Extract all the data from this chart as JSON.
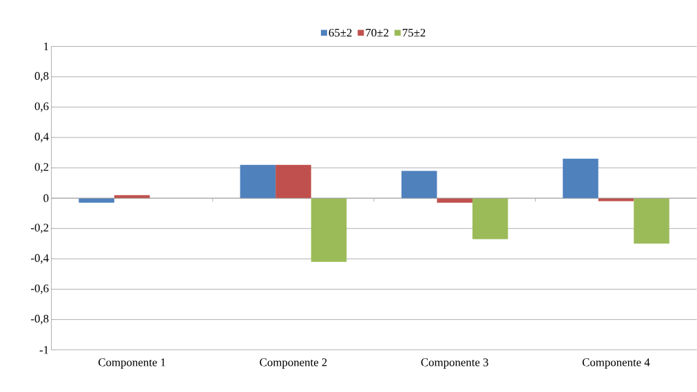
{
  "chart_data": {
    "type": "bar",
    "categories": [
      "Componente 1",
      "Componente 2",
      "Componente 3",
      "Componente 4"
    ],
    "series": [
      {
        "name": "65±2",
        "color": "#4f81bd",
        "values": [
          -0.03,
          0.22,
          0.18,
          0.26
        ]
      },
      {
        "name": "70±2",
        "color": "#c0504d",
        "values": [
          0.02,
          0.22,
          -0.03,
          -0.02
        ]
      },
      {
        "name": "75±2",
        "color": "#9bbb59",
        "values": [
          0,
          -0.42,
          -0.27,
          -0.3
        ]
      }
    ],
    "ylim": [
      -1,
      1
    ],
    "yticks": [
      -1,
      {
        "value": -0.8,
        "label": "-0,8"
      },
      {
        "value": -0.6,
        "label": "-0,6"
      },
      {
        "value": -0.4,
        "label": "-0,4"
      },
      {
        "value": -0.2,
        "label": "-0,2"
      },
      0,
      {
        "value": 0.2,
        "label": "0,2"
      },
      {
        "value": 0.4,
        "label": "0,4"
      },
      {
        "value": 0.6,
        "label": "0,6"
      },
      {
        "value": 0.8,
        "label": "0,8"
      },
      1
    ],
    "grid": "y",
    "legend": "top"
  }
}
